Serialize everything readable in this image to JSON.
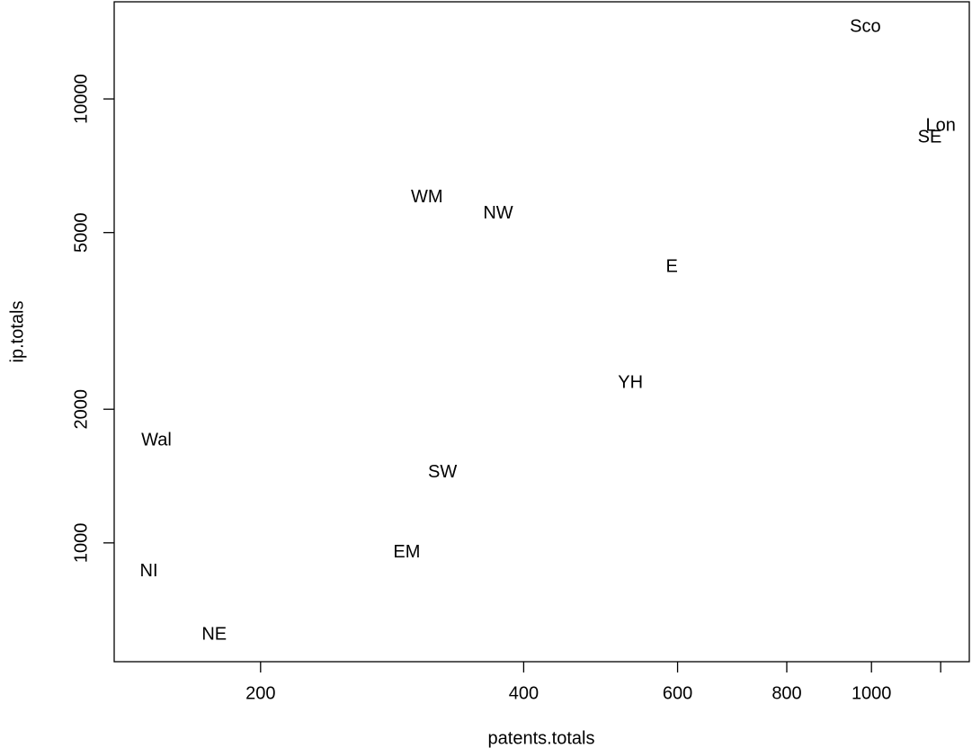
{
  "chart_data": {
    "type": "scatter",
    "xlabel": "patents.totals",
    "ylabel": "ip.totals",
    "labels": [
      "Sco",
      "Lon",
      "SE",
      "WM",
      "NW",
      "E",
      "YH",
      "Wal",
      "SW",
      "EM",
      "NI",
      "NE"
    ],
    "x": [
      984,
      1200,
      1166,
      310,
      374,
      591,
      530,
      152,
      323,
      294,
      149,
      177
    ],
    "y": [
      14520,
      8690,
      8180,
      5990,
      5510,
      4180,
      2290,
      1700,
      1440,
      950,
      861,
      620
    ],
    "color": "#000000",
    "xlog": true,
    "ylog": true,
    "xlim": [
      136,
      1294
    ],
    "ylim": [
      540,
      16550
    ],
    "xticks": [
      200,
      400,
      600,
      800,
      1000,
      {
        "value": 1200,
        "label": null
      }
    ],
    "yticks": [
      1000,
      2000,
      5000,
      10000
    ]
  }
}
